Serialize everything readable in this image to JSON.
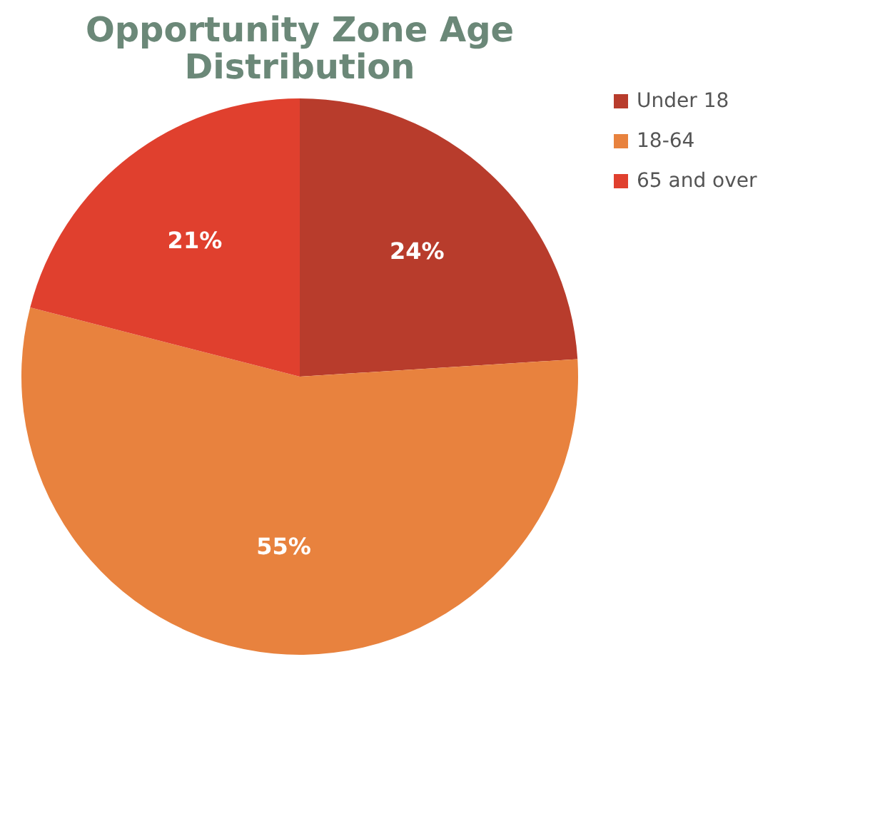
{
  "chart_data": {
    "type": "pie",
    "title": [
      "Opportunity Zone Age",
      "Distribution"
    ],
    "categories": [
      "Under 18",
      "18-64",
      "65 and over"
    ],
    "values": [
      24,
      55,
      21
    ],
    "value_labels": [
      "24%",
      "55%",
      "21%"
    ],
    "colors": [
      "#b83c2c",
      "#e8823e",
      "#e0402e"
    ],
    "legend": "right"
  }
}
